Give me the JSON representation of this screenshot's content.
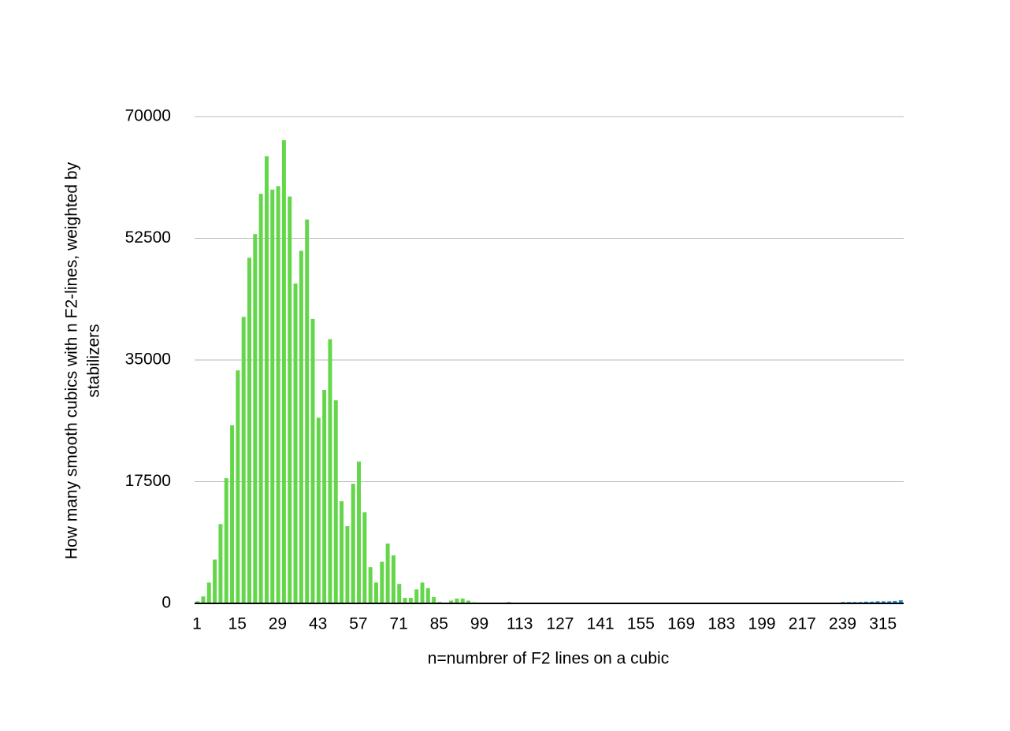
{
  "chart_data": {
    "type": "bar",
    "ylabel": [
      "How many smooth cubics with n F2-lines, weighted by",
      "stabilizers"
    ],
    "xlabel": "n=numbrer of F2 lines on a cubic",
    "categories": [
      "1",
      null,
      null,
      null,
      null,
      null,
      null,
      "15",
      null,
      null,
      null,
      null,
      null,
      null,
      "29",
      null,
      null,
      null,
      null,
      null,
      null,
      "43",
      null,
      null,
      null,
      null,
      null,
      null,
      "57",
      null,
      null,
      null,
      null,
      null,
      null,
      "71",
      null,
      null,
      null,
      null,
      null,
      null,
      "85",
      null,
      null,
      null,
      null,
      null,
      null,
      "99",
      null,
      null,
      null,
      null,
      null,
      null,
      "113",
      null,
      null,
      null,
      null,
      null,
      null,
      "127",
      null,
      null,
      null,
      null,
      null,
      null,
      "141",
      null,
      null,
      null,
      null,
      null,
      null,
      "155",
      null,
      null,
      null,
      null,
      null,
      null,
      "169",
      null,
      null,
      null,
      null,
      null,
      null,
      "183",
      null,
      null,
      null,
      null,
      null,
      null,
      "199",
      null,
      null,
      null,
      null,
      null,
      null,
      "217",
      null,
      null,
      null,
      null,
      null,
      null,
      "239",
      null,
      null,
      null,
      null,
      null,
      null,
      "315",
      null,
      null,
      null
    ],
    "values": [
      300,
      1000,
      3000,
      6300,
      11400,
      18000,
      25600,
      33500,
      41200,
      49700,
      53100,
      58900,
      64300,
      59500,
      60000,
      66600,
      58500,
      46000,
      50700,
      55200,
      40900,
      26700,
      30700,
      38000,
      29200,
      14700,
      11100,
      17200,
      20400,
      13100,
      5200,
      3000,
      6000,
      8600,
      6900,
      2800,
      800,
      800,
      2000,
      3000,
      2200,
      900,
      200,
      100,
      400,
      700,
      700,
      400,
      150,
      100,
      80,
      60,
      50,
      40,
      200,
      30,
      20,
      20,
      20,
      20,
      20,
      20,
      20,
      20,
      20,
      20,
      20,
      20,
      20,
      20,
      20,
      20,
      20,
      20,
      20,
      20,
      20,
      20,
      20,
      20,
      20,
      20,
      20,
      20,
      20,
      20,
      20,
      20,
      20,
      20,
      20,
      20,
      20,
      20,
      20,
      20,
      20,
      20,
      20,
      20,
      20,
      20,
      20,
      20,
      20,
      20,
      20,
      20,
      20,
      20,
      20,
      20,
      200,
      200,
      200,
      200,
      250,
      250,
      300,
      300,
      300,
      350,
      450
    ],
    "colors": [
      "#63d64a",
      "#63d64a",
      "#63d64a",
      "#63d64a",
      "#63d64a",
      "#63d64a",
      "#63d64a",
      "#63d64a",
      "#63d64a",
      "#63d64a",
      "#63d64a",
      "#63d64a",
      "#63d64a",
      "#63d64a",
      "#63d64a",
      "#63d64a",
      "#63d64a",
      "#63d64a",
      "#63d64a",
      "#63d64a",
      "#63d64a",
      "#63d64a",
      "#63d64a",
      "#63d64a",
      "#63d64a",
      "#63d64a",
      "#63d64a",
      "#63d64a",
      "#63d64a",
      "#63d64a",
      "#63d64a",
      "#63d64a",
      "#63d64a",
      "#63d64a",
      "#63d64a",
      "#63d64a",
      "#63d64a",
      "#63d64a",
      "#63d64a",
      "#63d64a",
      "#63d64a",
      "#63d64a",
      "#63d64a",
      "#63d64a",
      "#63d64a",
      "#63d64a",
      "#63d64a",
      "#63d64a",
      "#63d64a",
      "#63d64a",
      "#63d64a",
      "#63d64a",
      "#63d64a",
      "#63d64a",
      "#63d64a",
      "#63d64a",
      "#63d64a",
      "#63d64a",
      "#63d64a",
      "#63d64a",
      "#63d64a",
      "#63d64a",
      "#63d64a",
      "#63d64a",
      "#63d64a",
      "#63d64a",
      "#63d64a",
      "#63d64a",
      "#63d64a",
      "#63d64a",
      "#63d64a",
      "#63d64a",
      "#63d64a",
      "#63d64a",
      "#63d64a",
      "#63d64a",
      "#63d64a",
      "#63d64a",
      "#63d64a",
      "#63d64a",
      "#63d64a",
      "#63d64a",
      "#63d64a",
      "#63d64a",
      "#63d64a",
      "#63d64a",
      "#63d64a",
      "#63d64a",
      "#63d64a",
      "#63d64a",
      "#63d64a",
      "#63d64a",
      "#63d64a",
      "#63d64a",
      "#63d64a",
      "#63d64a",
      "#63d64a",
      "#63d64a",
      "#63d64a",
      "#63d64a",
      "#63d64a",
      "#63d64a",
      "#63d64a",
      "#63d64a",
      "#63d64a",
      "#63d64a",
      "#63d64a",
      "#63d64a",
      "#63d64a",
      "#63d64a",
      "#63d64a",
      "#63d64a",
      "#1f8ad6",
      "#1f8ad6",
      "#1f8ad6",
      "#1f8ad6",
      "#1f8ad6",
      "#1f8ad6",
      "#1f8ad6",
      "#1f8ad6",
      "#1f8ad6",
      "#1f8ad6",
      "#1f8ad6"
    ],
    "ylim": [
      0,
      70000
    ],
    "yticks": [
      0,
      17500,
      35000,
      52500,
      70000
    ],
    "grid": true
  }
}
